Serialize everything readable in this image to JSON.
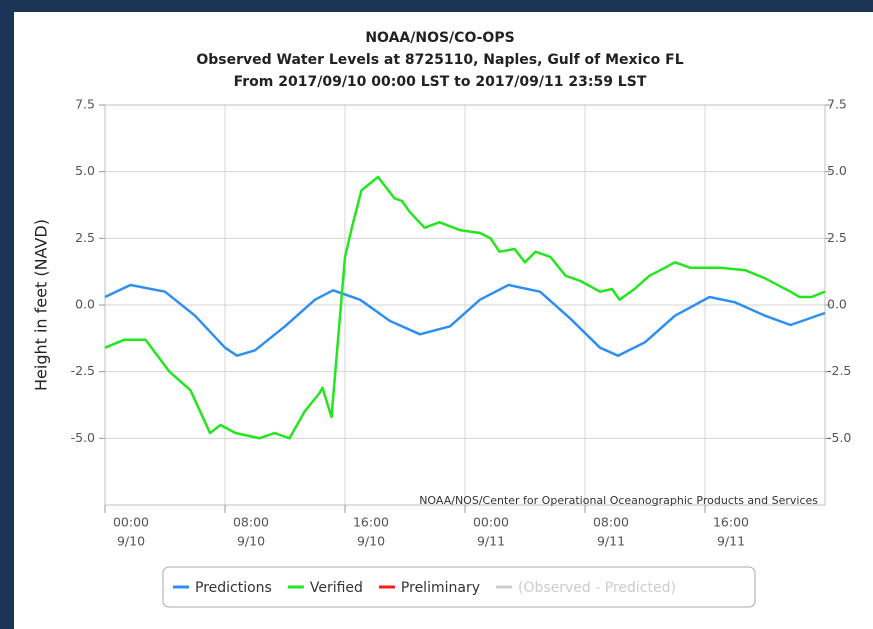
{
  "chart_data": {
    "type": "line",
    "title": "NOAA/NOS/CO-OPS",
    "subtitle": "Observed Water Levels at 8725110, Naples, Gulf of Mexico FL",
    "subtitle2": "From 2017/09/10 00:00 LST to 2017/09/11 23:59 LST",
    "y_label": "Height in feet (NAVD)",
    "credit": "NOAA/NOS/Center for Operational Oceanographic Products and Services",
    "xlim": [
      0,
      48
    ],
    "xticks": [
      {
        "value": 0,
        "label": "00:00",
        "date": "9/10"
      },
      {
        "value": 8,
        "label": "08:00",
        "date": "9/10"
      },
      {
        "value": 16,
        "label": "16:00",
        "date": "9/10"
      },
      {
        "value": 24,
        "label": "00:00",
        "date": "9/11"
      },
      {
        "value": 32,
        "label": "08:00",
        "date": "9/11"
      },
      {
        "value": 40,
        "label": "16:00",
        "date": "9/11"
      }
    ],
    "ylim": [
      -7.5,
      7.5
    ],
    "yticks": [
      {
        "value": 7.5,
        "label": "7.5"
      },
      {
        "value": 5,
        "label": "5.0"
      },
      {
        "value": 2.5,
        "label": "2.5"
      },
      {
        "value": 0,
        "label": "0.0"
      },
      {
        "value": -2.5,
        "label": "-2.5"
      },
      {
        "value": -5,
        "label": "-5.0"
      }
    ],
    "y2lim": [
      -7.5,
      7.5
    ],
    "y2ticks": [
      {
        "value": 7.5,
        "label": "7.5"
      },
      {
        "value": 5,
        "label": "5.0"
      },
      {
        "value": 2.5,
        "label": "2.5"
      },
      {
        "value": 0,
        "label": "0.0"
      },
      {
        "value": -2.5,
        "label": "-2.5"
      },
      {
        "value": -5,
        "label": "-5.0"
      }
    ],
    "grid": true,
    "legend": "bottom",
    "series": [
      {
        "name": "Predictions",
        "color": "#2f8ff0",
        "x": [
          0,
          1.7,
          4,
          6,
          8,
          8.8,
          10,
          12,
          14,
          15.2,
          17,
          19,
          21,
          23,
          25,
          26.9,
          29,
          31,
          33,
          34.2,
          36,
          38,
          40.3,
          42,
          44,
          45.7,
          48
        ],
        "values": [
          0.3,
          0.75,
          0.5,
          -0.4,
          -1.6,
          -1.9,
          -1.7,
          -0.8,
          0.2,
          0.55,
          0.2,
          -0.6,
          -1.1,
          -0.8,
          0.2,
          0.75,
          0.5,
          -0.5,
          -1.6,
          -1.9,
          -1.4,
          -0.4,
          0.3,
          0.1,
          -0.4,
          -0.75,
          -0.3
        ]
      },
      {
        "name": "Verified",
        "color": "#22e61e",
        "x": [
          0,
          1.3,
          2.7,
          4.3,
          5.7,
          7,
          7.7,
          8.7,
          10.3,
          11.3,
          12.3,
          13.3,
          14.3,
          14.5,
          15.1,
          16,
          16.5,
          17.1,
          18.2,
          19.3,
          19.8,
          20.3,
          21.3,
          22.3,
          23.7,
          25,
          25.7,
          26.3,
          27.3,
          28,
          28.7,
          29.7,
          30.7,
          31.7,
          33,
          33.8,
          34.3,
          35.3,
          36.3,
          37,
          38,
          39,
          41,
          42.7,
          44,
          45.7,
          46.3,
          47.1,
          48
        ],
        "values": [
          -1.6,
          -1.3,
          -1.3,
          -2.5,
          -3.2,
          -4.8,
          -4.5,
          -4.8,
          -5.0,
          -4.8,
          -5.0,
          -4.0,
          -3.3,
          -3.1,
          -4.2,
          1.8,
          3.0,
          4.3,
          4.8,
          4.0,
          3.9,
          3.5,
          2.9,
          3.1,
          2.8,
          2.7,
          2.5,
          2.0,
          2.1,
          1.6,
          2.0,
          1.8,
          1.1,
          0.9,
          0.5,
          0.6,
          0.2,
          0.6,
          1.1,
          1.3,
          1.6,
          1.4,
          1.4,
          1.3,
          1.0,
          0.5,
          0.3,
          0.3,
          0.5
        ]
      },
      {
        "name": "Preliminary",
        "color": "#ff1a1a",
        "x": [],
        "values": []
      },
      {
        "name": "(Observed - Predicted)",
        "color": "#cccccc",
        "x": [],
        "values": []
      }
    ]
  }
}
